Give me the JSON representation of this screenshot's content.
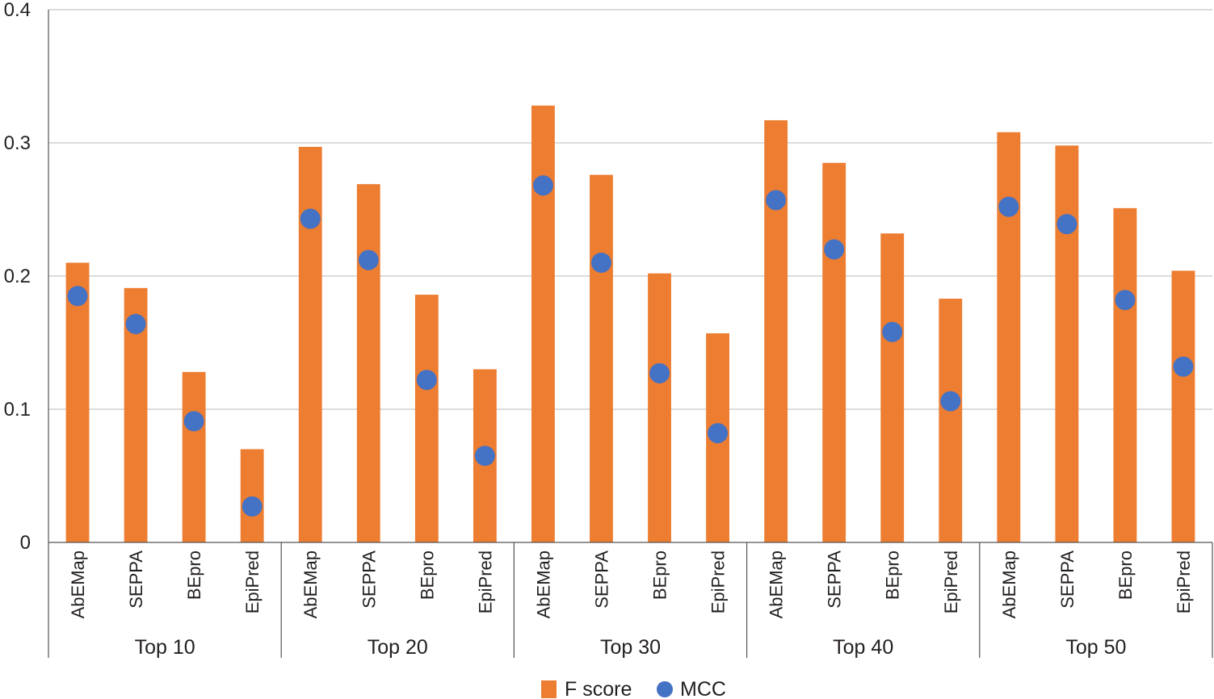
{
  "chart_data": {
    "type": "bar",
    "groups": [
      {
        "label": "Top 10",
        "methods": [
          "AbEMap",
          "SEPPA",
          "BEpro",
          "EpiPred"
        ]
      },
      {
        "label": "Top 20",
        "methods": [
          "AbEMap",
          "SEPPA",
          "BEpro",
          "EpiPred"
        ]
      },
      {
        "label": "Top 30",
        "methods": [
          "AbEMap",
          "SEPPA",
          "BEpro",
          "EpiPred"
        ]
      },
      {
        "label": "Top 40",
        "methods": [
          "AbEMap",
          "SEPPA",
          "BEpro",
          "EpiPred"
        ]
      },
      {
        "label": "Top 50",
        "methods": [
          "AbEMap",
          "SEPPA",
          "BEpro",
          "EpiPred"
        ]
      }
    ],
    "series": [
      {
        "name": "F score",
        "kind": "bar",
        "color": "#ed7d31",
        "values": [
          0.21,
          0.191,
          0.128,
          0.07,
          0.297,
          0.269,
          0.186,
          0.13,
          0.328,
          0.276,
          0.202,
          0.157,
          0.317,
          0.285,
          0.232,
          0.183,
          0.308,
          0.298,
          0.251,
          0.204
        ]
      },
      {
        "name": "MCC",
        "kind": "dot",
        "color": "#4472c4",
        "values": [
          0.185,
          0.164,
          0.091,
          0.027,
          0.243,
          0.212,
          0.122,
          0.065,
          0.268,
          0.21,
          0.127,
          0.082,
          0.257,
          0.22,
          0.158,
          0.106,
          0.252,
          0.239,
          0.182,
          0.132
        ]
      }
    ],
    "yticks": [
      "0",
      "0.1",
      "0.2",
      "0.3",
      "0.4"
    ],
    "ylim": [
      0,
      0.4
    ],
    "grid": true,
    "legend_position": "bottom-center"
  }
}
